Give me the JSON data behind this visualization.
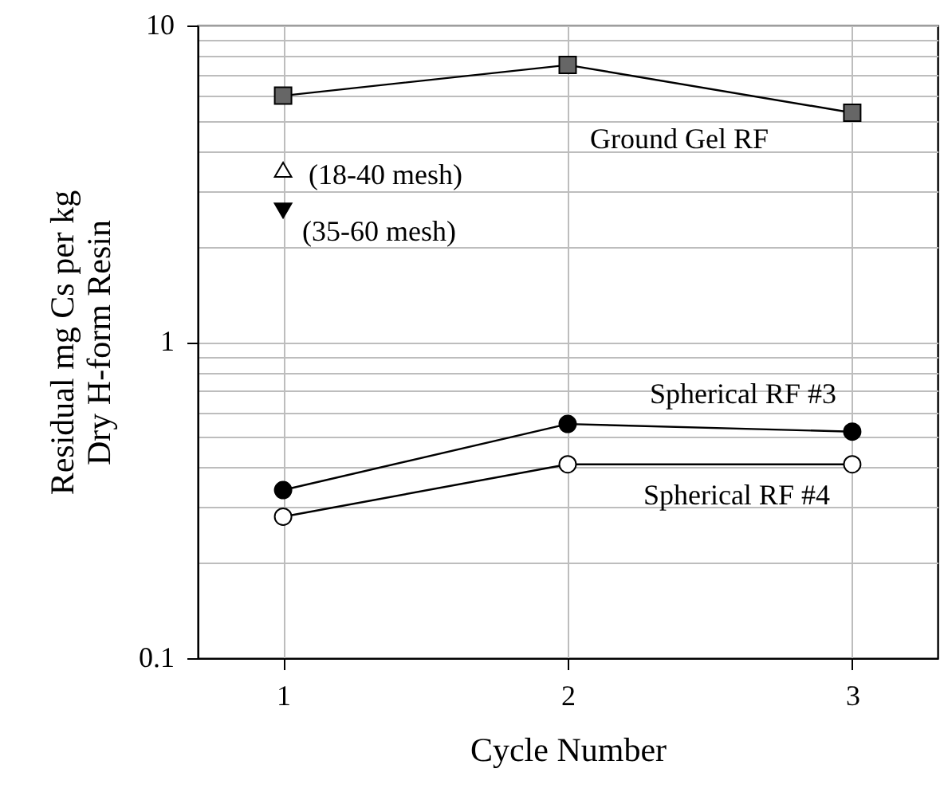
{
  "chart_data": {
    "type": "line",
    "xlabel": "Cycle Number",
    "ylabel": "Residual mg Cs per kg\nDry H-form Resin",
    "log": "y",
    "grid": true,
    "legend": false,
    "xlim": [
      0.7,
      3.3
    ],
    "xticks": [
      1,
      2,
      3
    ],
    "ylim": [
      0.1,
      10
    ],
    "yticks": [
      0.1,
      {
        "value": 0.2,
        "label": null
      },
      {
        "value": 0.3,
        "label": null
      },
      {
        "value": 0.4,
        "label": null
      },
      {
        "value": 0.5,
        "label": null
      },
      {
        "value": 0.6,
        "label": null
      },
      {
        "value": 0.7,
        "label": null
      },
      {
        "value": 0.8,
        "label": null
      },
      {
        "value": 0.9,
        "label": null
      },
      1,
      {
        "value": 2,
        "label": null
      },
      {
        "value": 3,
        "label": null
      },
      {
        "value": 4,
        "label": null
      },
      {
        "value": 5,
        "label": null
      },
      {
        "value": 6,
        "label": null
      },
      {
        "value": 7,
        "label": null
      },
      {
        "value": 8,
        "label": null
      },
      {
        "value": 9,
        "label": null
      },
      10
    ],
    "x": [
      1,
      2,
      3
    ],
    "series": [
      {
        "name": "Ground Gel RF",
        "marker": "square",
        "color": "#666666",
        "values": [
          6.0,
          7.5,
          5.3
        ]
      },
      {
        "name": "(18-40 mesh)",
        "type": "scatter",
        "marker": "triangle",
        "color": "#ffffff",
        "x": [
          1
        ],
        "values": [
          3.5
        ]
      },
      {
        "name": "(35-60 mesh)",
        "type": "scatter",
        "marker": "triangle-down",
        "color": "#000000",
        "x": [
          1
        ],
        "values": [
          2.6
        ]
      },
      {
        "name": "Spherical RF #3",
        "marker": "circle",
        "color": "#000000",
        "values": [
          0.34,
          0.55,
          0.52
        ]
      },
      {
        "name": "Spherical RF #4",
        "marker": "circle",
        "color": "#ffffff",
        "values": [
          0.28,
          0.41,
          0.41
        ]
      }
    ]
  }
}
